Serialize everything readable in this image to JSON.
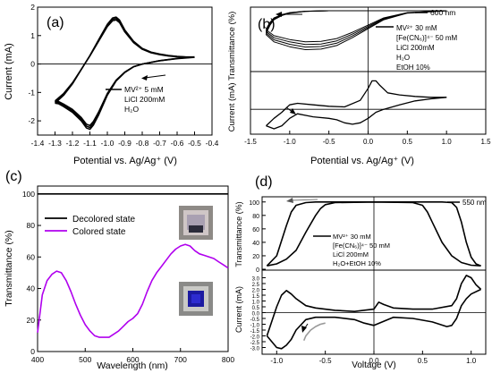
{
  "chart_data": [
    {
      "id": "a",
      "type": "line",
      "panel_label": "(a)",
      "xlabel": "Potential vs. Ag/Ag⁺ (V)",
      "ylabel": "Current (mA)",
      "xlim": [
        -1.4,
        -0.4
      ],
      "ylim": [
        -2.5,
        2.0
      ],
      "xticks": [
        -1.4,
        -1.3,
        -1.2,
        -1.1,
        -1.0,
        -0.9,
        -0.8,
        -0.7,
        -0.6,
        -0.5,
        -0.4
      ],
      "yticks": [
        -2,
        -1,
        0,
        1,
        2
      ],
      "legend_lines": [
        "MV²⁺ 5 mM",
        "LiCl 200mM",
        "H₂O"
      ],
      "series": [
        {
          "role": "cv-forward",
          "x": [
            -0.5,
            -0.6,
            -0.7,
            -0.8,
            -0.85,
            -0.9,
            -0.95,
            -1.0,
            -1.05,
            -1.08,
            -1.1,
            -1.12,
            -1.15,
            -1.2,
            -1.25,
            -1.28,
            -1.3
          ],
          "y": [
            0.25,
            0.2,
            0.12,
            0.0,
            -0.1,
            -0.3,
            -0.6,
            -1.1,
            -1.8,
            -2.15,
            -2.3,
            -2.25,
            -2.0,
            -1.7,
            -1.5,
            -1.4,
            -1.38
          ]
        },
        {
          "role": "cv-reverse",
          "x": [
            -1.3,
            -1.25,
            -1.2,
            -1.15,
            -1.1,
            -1.05,
            -1.0,
            -0.97,
            -0.95,
            -0.93,
            -0.9,
            -0.85,
            -0.8,
            -0.75,
            -0.7,
            -0.65,
            -0.6,
            -0.55,
            -0.5
          ],
          "y": [
            -1.38,
            -1.1,
            -0.7,
            -0.2,
            0.3,
            0.85,
            1.4,
            1.62,
            1.65,
            1.55,
            1.2,
            0.8,
            0.55,
            0.42,
            0.35,
            0.3,
            0.27,
            0.25,
            0.25
          ]
        }
      ]
    },
    {
      "id": "b",
      "type": "line",
      "panel_label": "(b)",
      "xlabel": "Potential vs. Ag/Ag⁺ (V)",
      "ylabel": "Current (mA) Transmittance (%)",
      "xlim": [
        -1.5,
        1.5
      ],
      "xticks": [
        -1.5,
        -1.0,
        -0.5,
        0.0,
        0.5,
        1.0,
        1.5
      ],
      "legend_lines": [
        "MV²⁺ 30 mM",
        "[Fe(CN₆)]⁴⁻ 50 mM",
        "LiCl 200mM",
        "H₂O",
        "EtOH 10%"
      ],
      "top_legend": "600 nm",
      "transmittance": {
        "ylim": [
          0,
          100
        ],
        "series": [
          {
            "role": "transmittance-cycle",
            "x": [
              1.0,
              0.5,
              0.0,
              -0.5,
              -0.8,
              -1.0,
              -1.1,
              -1.2,
              -1.25,
              -1.28,
              -1.3,
              -1.2,
              -1.0,
              -0.8,
              -0.6,
              -0.4,
              -0.2,
              0.0,
              0.2,
              0.5,
              1.0
            ],
            "y": [
              100,
              100,
              100,
              100,
              99,
              96,
              92,
              85,
              76,
              68,
              60,
              48,
              40,
              35,
              36,
              42,
              55,
              70,
              85,
              96,
              100
            ]
          }
        ]
      },
      "current": {
        "ylim": [
          -8,
          12
        ],
        "series": [
          {
            "role": "cv-forward",
            "x": [
              -1.3,
              -1.2,
              -1.1,
              -1.0,
              -0.9,
              -0.7,
              -0.5,
              -0.3,
              -0.1,
              0.0,
              0.05,
              0.1,
              0.15,
              0.25,
              0.4,
              0.6,
              0.8,
              1.0
            ],
            "y": [
              -5.5,
              -3.0,
              -1.0,
              1.5,
              2.0,
              1.5,
              1.0,
              0.8,
              3.0,
              7.0,
              9.5,
              9.5,
              8.0,
              5.5,
              4.8,
              4.3,
              4.0,
              4.0
            ]
          },
          {
            "role": "cv-reverse",
            "x": [
              1.0,
              0.8,
              0.6,
              0.4,
              0.2,
              0.1,
              0.0,
              -0.1,
              -0.2,
              -0.3,
              -0.4,
              -0.5,
              -0.7,
              -0.9,
              -1.0,
              -1.1,
              -1.2,
              -1.3
            ],
            "y": [
              4.0,
              3.5,
              2.8,
              1.5,
              0.0,
              -1.0,
              -3.0,
              -4.5,
              -5.0,
              -4.5,
              -3.5,
              -3.0,
              -2.5,
              -1.5,
              -3.0,
              -5.5,
              -6.5,
              -5.5
            ]
          }
        ]
      }
    },
    {
      "id": "c",
      "type": "line",
      "panel_label": "(c)",
      "xlabel": "Wavelength (nm)",
      "ylabel": "Transmittance (%)",
      "xlim": [
        400,
        800
      ],
      "ylim": [
        0,
        105
      ],
      "xticks": [
        400,
        500,
        600,
        700,
        800
      ],
      "yticks": [
        0,
        20,
        40,
        60,
        80,
        100
      ],
      "series": [
        {
          "name": "Decolored state",
          "color": "#000000",
          "x": [
            400,
            450,
            500,
            550,
            600,
            650,
            700,
            750,
            800
          ],
          "y": [
            100,
            100,
            100,
            100,
            100,
            100,
            100,
            100,
            100
          ]
        },
        {
          "name": "Colored state",
          "color": "#b000ee",
          "x": [
            400,
            410,
            420,
            430,
            440,
            450,
            460,
            470,
            480,
            490,
            500,
            510,
            520,
            530,
            540,
            550,
            560,
            570,
            580,
            590,
            600,
            610,
            620,
            630,
            640,
            650,
            660,
            670,
            680,
            690,
            700,
            710,
            720,
            730,
            740,
            750,
            760,
            770,
            780,
            790,
            800
          ],
          "y": [
            12,
            36,
            45,
            49,
            51,
            50,
            45,
            38,
            30,
            23,
            17,
            13,
            10,
            9,
            9,
            9,
            11,
            13,
            16,
            19,
            21,
            24,
            30,
            38,
            45,
            50,
            54,
            58,
            62,
            65,
            67,
            68,
            67,
            64,
            62,
            61,
            60,
            59,
            57,
            55,
            53
          ]
        }
      ]
    },
    {
      "id": "d",
      "type": "line",
      "panel_label": "(d)",
      "xlabel": "Voltage (V)",
      "ylabel_top": "Transmittance (%)",
      "ylabel_bottom": "Current (mA)",
      "xlim": [
        -1.15,
        1.15
      ],
      "xticks": [
        -1.0,
        -0.5,
        0.0,
        0.5,
        1.0
      ],
      "legend_lines": [
        "MV²⁺ 30 mM",
        "[Fe(CN₆)]⁴⁻ 50 mM",
        "LiCl 200mM",
        "H₂O+EtOH 10%"
      ],
      "top_legend": "550 nm",
      "transmittance": {
        "ylim": [
          0,
          105
        ],
        "yticks": [
          0,
          20,
          40,
          60,
          80,
          100
        ],
        "series": [
          {
            "role": "upper-branch",
            "x": [
              -1.1,
              -1.0,
              -0.9,
              -0.85,
              -0.8,
              -0.7,
              -0.6,
              -0.4,
              0.0,
              0.4,
              0.7,
              0.8,
              0.85,
              0.9,
              0.95,
              1.0,
              1.05,
              1.1
            ],
            "y": [
              5,
              20,
              65,
              85,
              95,
              99,
              100,
              100,
              100,
              100,
              100,
              99,
              92,
              70,
              40,
              18,
              8,
              5
            ]
          },
          {
            "role": "lower-branch",
            "x": [
              -1.1,
              -1.0,
              -0.9,
              -0.8,
              -0.7,
              -0.6,
              -0.55,
              -0.5,
              -0.4,
              0.0,
              0.4,
              0.5,
              0.55,
              0.6,
              0.7,
              0.8,
              0.9,
              1.0,
              1.1
            ],
            "y": [
              5,
              8,
              15,
              28,
              55,
              80,
              90,
              96,
              99,
              100,
              99,
              95,
              85,
              70,
              40,
              20,
              10,
              6,
              5
            ]
          }
        ]
      },
      "current": {
        "ylim": [
          -3.5,
          3.5
        ],
        "yticks": [
          -3.0,
          -2.5,
          -2.0,
          -1.5,
          -1.0,
          -0.5,
          0.0,
          0.5,
          1.0,
          1.5,
          2.0,
          2.5,
          3.0
        ],
        "series": [
          {
            "role": "cv-forward",
            "x": [
              -1.1,
              -1.0,
              -0.95,
              -0.9,
              -0.85,
              -0.8,
              -0.7,
              -0.6,
              -0.4,
              -0.2,
              0.0,
              0.05,
              0.1,
              0.2,
              0.4,
              0.6,
              0.8,
              0.85,
              0.9,
              0.95,
              1.0,
              1.05,
              1.1
            ],
            "y": [
              -2.0,
              0.5,
              1.5,
              1.9,
              1.6,
              1.2,
              0.6,
              0.4,
              0.2,
              0.1,
              0.3,
              0.9,
              0.7,
              0.4,
              0.3,
              0.3,
              0.6,
              1.2,
              2.5,
              3.2,
              3.0,
              2.4,
              2.0
            ]
          },
          {
            "role": "cv-reverse",
            "x": [
              1.1,
              1.0,
              0.95,
              0.9,
              0.85,
              0.8,
              0.75,
              0.6,
              0.4,
              0.2,
              0.0,
              -0.1,
              -0.2,
              -0.4,
              -0.6,
              -0.7,
              -0.8,
              -0.85,
              -0.9,
              -0.95,
              -1.0,
              -1.1
            ],
            "y": [
              2.0,
              1.6,
              1.2,
              0.6,
              -0.5,
              -1.1,
              -1.2,
              -0.8,
              -0.5,
              -0.4,
              -1.1,
              -0.9,
              -0.6,
              -0.4,
              -0.4,
              -0.6,
              -1.5,
              -2.3,
              -2.8,
              -3.1,
              -3.0,
              -2.0
            ]
          },
          {
            "role": "initial-scan",
            "color": "#999999",
            "x": [
              -0.5,
              -0.55,
              -0.6,
              -0.65,
              -0.7,
              -0.72
            ],
            "y": [
              -0.9,
              -1.0,
              -1.2,
              -1.5,
              -2.0,
              -2.4
            ]
          }
        ]
      }
    }
  ]
}
